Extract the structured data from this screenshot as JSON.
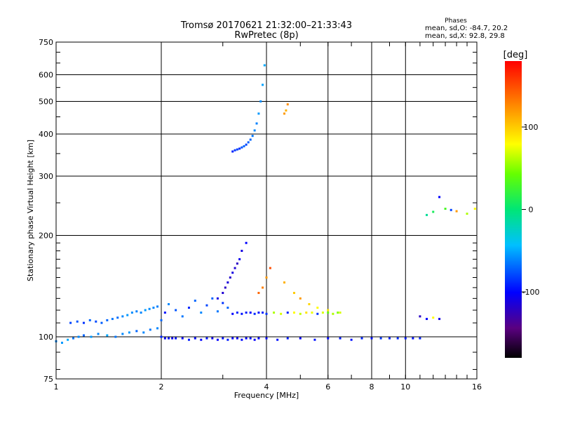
{
  "chart_data": {
    "type": "scatter",
    "title": "Tromsø 20170621 21:32:00–21:33:43",
    "subtitle": "RwPretec (8p)",
    "xlabel": "Frequency [MHz]",
    "ylabel": "Stationary phase Virtual Height [km]",
    "x_scale": "log",
    "y_scale": "log",
    "xlim": [
      1,
      16
    ],
    "ylim": [
      75,
      750
    ],
    "x_ticks": [
      1,
      2,
      4,
      6,
      8,
      10,
      16
    ],
    "x_tick_labels": [
      "1",
      "2",
      "4",
      "6",
      "8",
      "10",
      "16"
    ],
    "y_ticks": [
      75,
      100,
      200,
      300,
      400,
      500,
      600,
      750
    ],
    "y_tick_labels": [
      "75",
      "100",
      "200",
      "300",
      "400",
      "500",
      "600",
      "750"
    ],
    "grid": true,
    "stats": {
      "heading": "Phases",
      "line1": "mean, sd,O: -84.7, 20.2",
      "line2": "mean, sd,X:  92.8, 29.8"
    },
    "colorbar": {
      "label": "[deg]",
      "range": [
        -180,
        180
      ],
      "ticks": [
        100,
        0,
        -100
      ],
      "tick_labels": [
        "100",
        "0",
        "-100"
      ]
    },
    "series": [
      {
        "x": [
          1.0,
          1.04,
          1.08,
          1.12,
          1.16,
          1.2,
          1.26,
          1.32,
          1.4,
          1.48,
          1.55,
          1.62,
          1.7,
          1.78,
          1.86,
          1.95
        ],
        "y": [
          97,
          96,
          98,
          99,
          100,
          101,
          100,
          102,
          101,
          100,
          102,
          103,
          104,
          103,
          105,
          106
        ],
        "phase": [
          -60,
          -55,
          -50,
          -65,
          -60,
          -70,
          -55,
          -60,
          -50,
          -65,
          -60,
          -55,
          -70,
          -60,
          -65,
          -60
        ]
      },
      {
        "x": [
          1.1,
          1.15,
          1.2,
          1.25,
          1.3,
          1.35,
          1.4,
          1.45,
          1.5,
          1.55,
          1.6,
          1.65,
          1.7,
          1.75,
          1.8,
          1.85,
          1.9,
          1.95
        ],
        "y": [
          110,
          111,
          110,
          112,
          111,
          110,
          112,
          113,
          114,
          115,
          116,
          118,
          119,
          118,
          120,
          121,
          122,
          123
        ],
        "phase": [
          -80,
          -75,
          -85,
          -70,
          -78,
          -72,
          -70,
          -65,
          -68,
          -60,
          -55,
          -58,
          -62,
          -60,
          -55,
          -58,
          -60,
          -62
        ]
      },
      {
        "x": [
          2.0,
          2.05,
          2.1,
          2.2,
          2.3,
          2.4,
          2.5,
          2.6,
          2.7,
          2.8,
          2.9,
          3.0,
          3.1
        ],
        "y": [
          112,
          118,
          125,
          120,
          115,
          122,
          128,
          118,
          124,
          130,
          119,
          126,
          122
        ],
        "phase": [
          -70,
          -95,
          -60,
          -75,
          -65,
          -90,
          -70,
          -60,
          -80,
          -72,
          -65,
          -85,
          -70
        ]
      },
      {
        "x": [
          2.0,
          2.05,
          2.1,
          2.15,
          2.2,
          2.3,
          2.4,
          2.5,
          2.6,
          2.7,
          2.8,
          2.9,
          3.0,
          3.1,
          3.2,
          3.3,
          3.4,
          3.5,
          3.6,
          3.7,
          3.8,
          4.0,
          4.3,
          4.6,
          5.0,
          5.5,
          6.0,
          6.5,
          7.0,
          7.5,
          8.0,
          8.5,
          9.0,
          9.5,
          10.0,
          10.5,
          11.0
        ],
        "y": [
          100,
          99,
          99,
          99,
          99,
          99,
          98,
          99,
          98,
          99,
          99,
          98,
          99,
          98,
          99,
          99,
          98,
          99,
          99,
          98,
          99,
          99,
          98,
          99,
          99,
          98,
          99,
          99,
          98,
          99,
          99,
          99,
          99,
          99,
          99,
          99,
          99
        ],
        "phase": [
          -90,
          -100,
          -95,
          -105,
          -95,
          -100,
          -92,
          -98,
          -100,
          -95,
          -105,
          -100,
          -96,
          -92,
          -100,
          -104,
          -98,
          -100,
          -95,
          -102,
          -100,
          -98,
          -95,
          -92,
          -100,
          -95,
          -98,
          -92,
          -96,
          -90,
          -95,
          -85,
          -90,
          -88,
          -92,
          -95,
          -90
        ]
      },
      {
        "x": [
          2.9,
          3.0,
          3.05,
          3.1,
          3.15,
          3.2,
          3.25,
          3.3,
          3.35,
          3.4,
          3.5
        ],
        "y": [
          130,
          135,
          140,
          145,
          150,
          155,
          160,
          165,
          170,
          180,
          190
        ],
        "phase": [
          -110,
          -115,
          -120,
          -112,
          -118,
          -110,
          -115,
          -120,
          -105,
          -110,
          -100
        ]
      },
      {
        "x": [
          3.2,
          3.3,
          3.4,
          3.5,
          3.6,
          3.7,
          3.8,
          3.9,
          4.0,
          4.2,
          4.4,
          4.6,
          4.8,
          5.0,
          5.2,
          5.4,
          5.6,
          5.8,
          6.0,
          6.2,
          6.4
        ],
        "y": [
          117,
          118,
          117,
          118,
          118,
          117,
          118,
          118,
          117,
          118,
          117,
          118,
          118,
          117,
          118,
          118,
          117,
          118,
          118,
          117,
          118
        ],
        "phase": [
          -100,
          -90,
          -95,
          -92,
          -100,
          -88,
          -95,
          -90,
          -85,
          60,
          70,
          -90,
          80,
          65,
          90,
          75,
          -85,
          70,
          40,
          60,
          50
        ]
      },
      {
        "x": [
          3.2,
          3.25,
          3.3,
          3.35,
          3.4,
          3.45,
          3.5,
          3.55,
          3.6,
          3.65,
          3.7,
          3.75,
          3.8,
          3.85,
          3.9,
          3.95
        ],
        "y": [
          355,
          358,
          360,
          362,
          365,
          368,
          372,
          378,
          385,
          395,
          410,
          430,
          460,
          500,
          560,
          640
        ],
        "phase": [
          -90,
          -85,
          -80,
          -88,
          -75,
          -70,
          -80,
          -72,
          -70,
          -65,
          -60,
          -62,
          -55,
          -58,
          -52,
          -50
        ]
      },
      {
        "x": [
          4.5,
          4.55,
          4.6
        ],
        "y": [
          460,
          470,
          490
        ],
        "phase": [
          120,
          110,
          125
        ]
      },
      {
        "x": [
          3.8,
          3.9,
          4.0,
          4.1,
          4.5,
          4.8,
          5.0,
          5.3,
          5.6,
          6.0,
          6.5
        ],
        "y": [
          135,
          140,
          150,
          160,
          145,
          135,
          130,
          125,
          122,
          120,
          118
        ],
        "phase": [
          140,
          130,
          120,
          150,
          110,
          100,
          120,
          95,
          80,
          90,
          70
        ]
      },
      {
        "x": [
          11.0,
          11.5,
          12.0,
          12.5
        ],
        "y": [
          115,
          113,
          114,
          113
        ],
        "phase": [
          -120,
          -100,
          80,
          -110
        ]
      },
      {
        "x": [
          11.5,
          12.0,
          12.5,
          13.0,
          13.5,
          14.0,
          15.0,
          15.8
        ],
        "y": [
          230,
          235,
          260,
          240,
          238,
          236,
          232,
          240
        ],
        "phase": [
          -10,
          10,
          -100,
          30,
          -80,
          120,
          60,
          80
        ]
      }
    ]
  }
}
